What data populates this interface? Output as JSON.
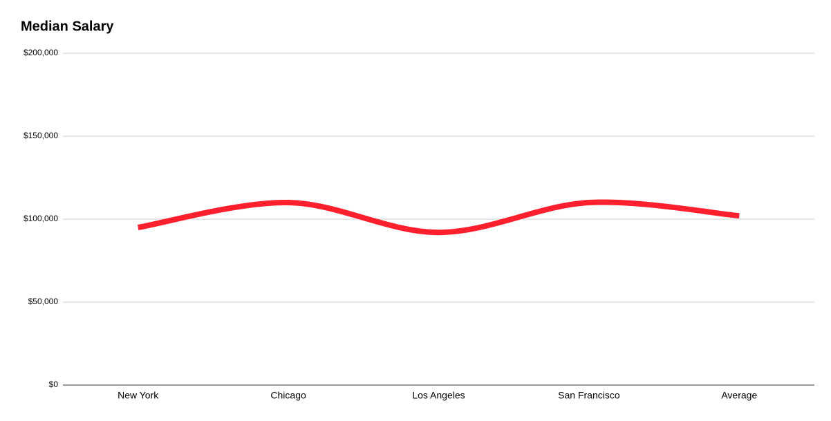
{
  "chart_data": {
    "type": "line",
    "title": "Median Salary",
    "smooth": true,
    "categories": [
      "New York",
      "Chicago",
      "Los Angeles",
      "San Francisco",
      "Average"
    ],
    "values": [
      95000,
      110000,
      92000,
      110000,
      102000
    ],
    "color": "#ff1f2d",
    "ylim": [
      0,
      200000
    ],
    "yticks": [
      {
        "value": 0,
        "label": "$0"
      },
      {
        "value": 50000,
        "label": "$50,000"
      },
      {
        "value": 100000,
        "label": "$100,000"
      },
      {
        "value": 150000,
        "label": "$150,000"
      },
      {
        "value": 200000,
        "label": "$200,000"
      }
    ],
    "grid": true
  }
}
